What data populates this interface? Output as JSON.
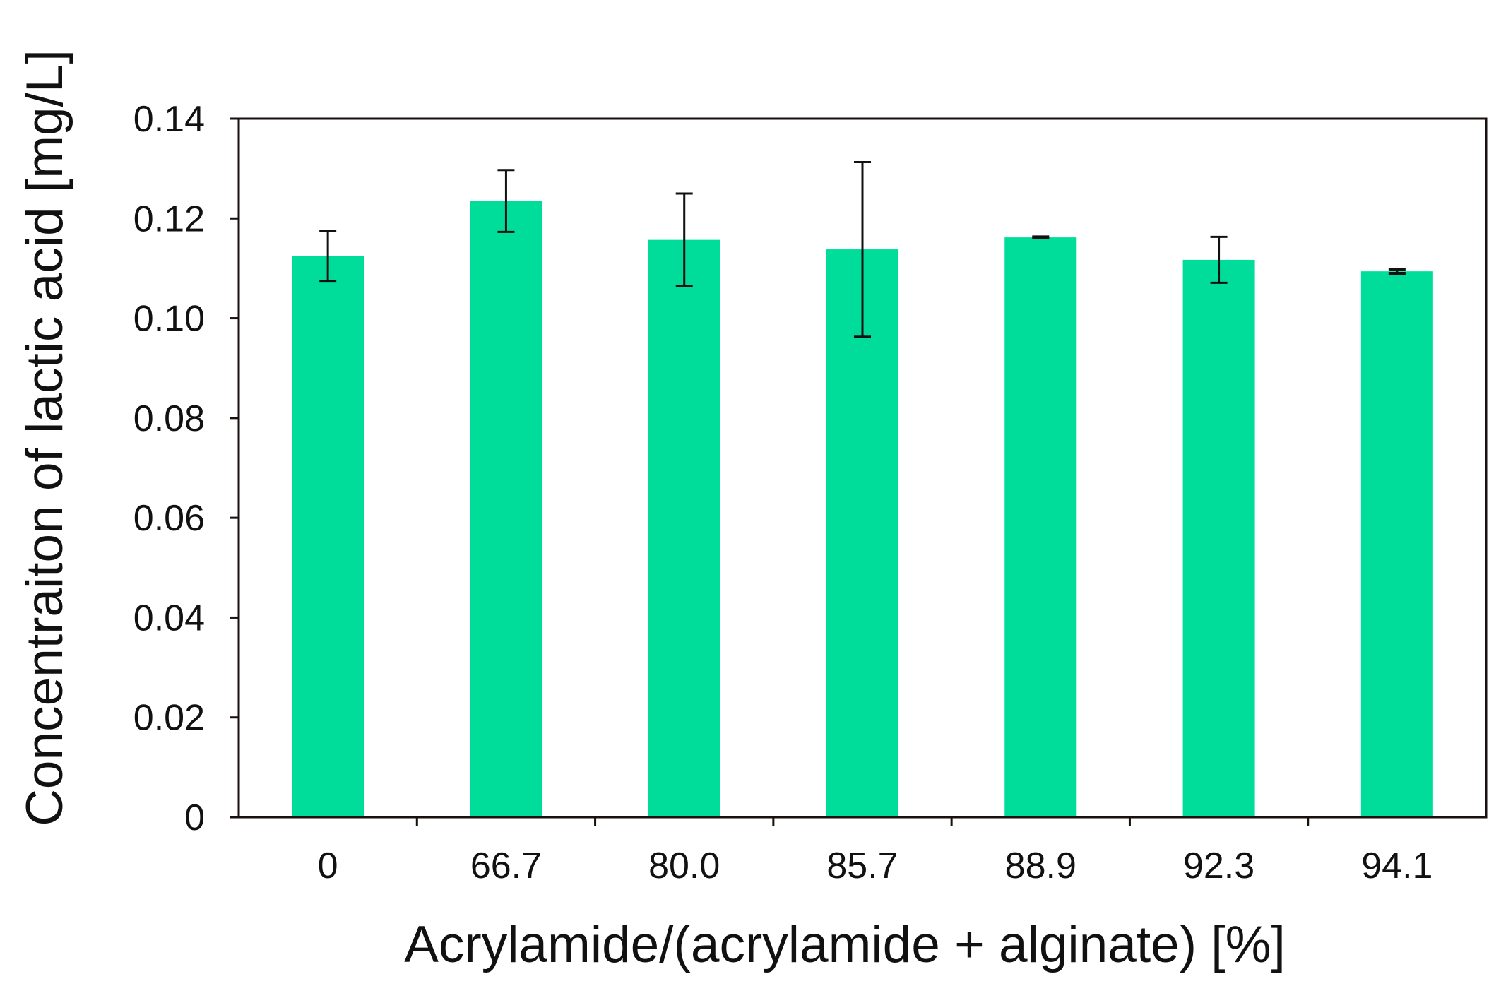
{
  "chart_data": {
    "type": "bar",
    "title": "",
    "xlabel": "Acrylamide/(acrylamide + alginate) [%]",
    "ylabel": "Concentraiton of lactic acid [mg/L]",
    "categories": [
      "0",
      "66.7",
      "80.0",
      "85.7",
      "88.9",
      "92.3",
      "94.1"
    ],
    "values": [
      0.1125,
      0.1235,
      0.1157,
      0.1138,
      0.1162,
      0.1117,
      0.1094
    ],
    "errors": [
      0.005,
      0.0062,
      0.0093,
      0.0175,
      0.0001,
      0.0046,
      0.0004
    ],
    "ylim": [
      0,
      0.14
    ],
    "yticks": [
      "0",
      "0.02",
      "0.04",
      "0.06",
      "0.08",
      "0.10",
      "0.12",
      "0.14"
    ],
    "grid": false,
    "bar_color": "#00dc9a",
    "axis_color": "#1a0f0f"
  }
}
